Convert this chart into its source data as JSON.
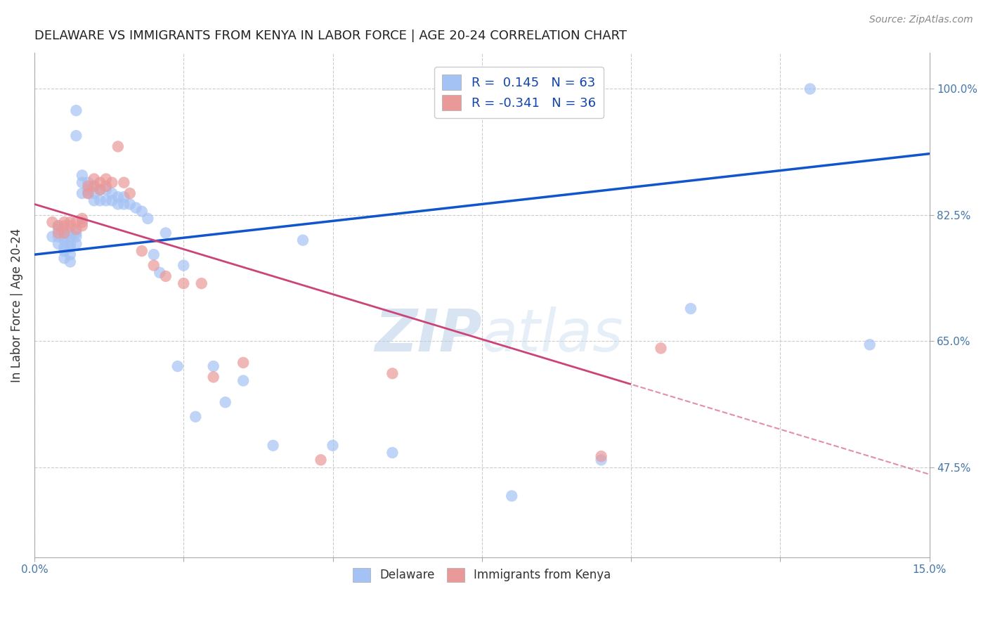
{
  "title": "DELAWARE VS IMMIGRANTS FROM KENYA IN LABOR FORCE | AGE 20-24 CORRELATION CHART",
  "source": "Source: ZipAtlas.com",
  "ylabel": "In Labor Force | Age 20-24",
  "xlim": [
    0.0,
    0.15
  ],
  "ylim": [
    0.35,
    1.05
  ],
  "xticks": [
    0.0,
    0.025,
    0.05,
    0.075,
    0.1,
    0.125,
    0.15
  ],
  "xticklabels": [
    "0.0%",
    "",
    "",
    "",
    "",
    "",
    "15.0%"
  ],
  "yticks": [
    0.475,
    0.65,
    0.825,
    1.0
  ],
  "yticklabels": [
    "47.5%",
    "65.0%",
    "82.5%",
    "100.0%"
  ],
  "r_blue": 0.145,
  "n_blue": 63,
  "r_pink": -0.341,
  "n_pink": 36,
  "blue_color": "#a4c2f4",
  "pink_color": "#ea9999",
  "blue_line_color": "#1155cc",
  "pink_line_color": "#cc4477",
  "grid_color": "#cccccc",
  "blue_scatter_x": [
    0.003,
    0.004,
    0.004,
    0.004,
    0.004,
    0.005,
    0.005,
    0.005,
    0.005,
    0.005,
    0.005,
    0.006,
    0.006,
    0.006,
    0.006,
    0.006,
    0.006,
    0.007,
    0.007,
    0.007,
    0.007,
    0.007,
    0.008,
    0.008,
    0.008,
    0.009,
    0.009,
    0.009,
    0.01,
    0.01,
    0.01,
    0.011,
    0.011,
    0.012,
    0.012,
    0.013,
    0.013,
    0.014,
    0.014,
    0.015,
    0.015,
    0.016,
    0.017,
    0.018,
    0.019,
    0.02,
    0.021,
    0.022,
    0.024,
    0.025,
    0.027,
    0.03,
    0.032,
    0.035,
    0.04,
    0.045,
    0.05,
    0.06,
    0.08,
    0.095,
    0.11,
    0.13,
    0.14
  ],
  "blue_scatter_y": [
    0.795,
    0.81,
    0.805,
    0.795,
    0.785,
    0.8,
    0.795,
    0.79,
    0.78,
    0.775,
    0.765,
    0.8,
    0.795,
    0.785,
    0.78,
    0.77,
    0.76,
    0.8,
    0.795,
    0.785,
    0.97,
    0.935,
    0.88,
    0.87,
    0.855,
    0.87,
    0.86,
    0.855,
    0.865,
    0.855,
    0.845,
    0.86,
    0.845,
    0.86,
    0.845,
    0.855,
    0.845,
    0.85,
    0.84,
    0.85,
    0.84,
    0.84,
    0.835,
    0.83,
    0.82,
    0.77,
    0.745,
    0.8,
    0.615,
    0.755,
    0.545,
    0.615,
    0.565,
    0.595,
    0.505,
    0.79,
    0.505,
    0.495,
    0.435,
    0.485,
    0.695,
    1.0,
    0.645
  ],
  "pink_scatter_x": [
    0.003,
    0.004,
    0.004,
    0.005,
    0.005,
    0.005,
    0.006,
    0.006,
    0.007,
    0.007,
    0.008,
    0.008,
    0.008,
    0.009,
    0.009,
    0.01,
    0.01,
    0.011,
    0.011,
    0.012,
    0.012,
    0.013,
    0.014,
    0.015,
    0.016,
    0.018,
    0.02,
    0.022,
    0.025,
    0.028,
    0.03,
    0.035,
    0.048,
    0.06,
    0.095,
    0.105
  ],
  "pink_scatter_y": [
    0.815,
    0.81,
    0.8,
    0.815,
    0.81,
    0.8,
    0.815,
    0.81,
    0.815,
    0.805,
    0.82,
    0.815,
    0.81,
    0.865,
    0.855,
    0.875,
    0.865,
    0.87,
    0.86,
    0.875,
    0.865,
    0.87,
    0.92,
    0.87,
    0.855,
    0.775,
    0.755,
    0.74,
    0.73,
    0.73,
    0.6,
    0.62,
    0.485,
    0.605,
    0.49,
    0.64
  ]
}
